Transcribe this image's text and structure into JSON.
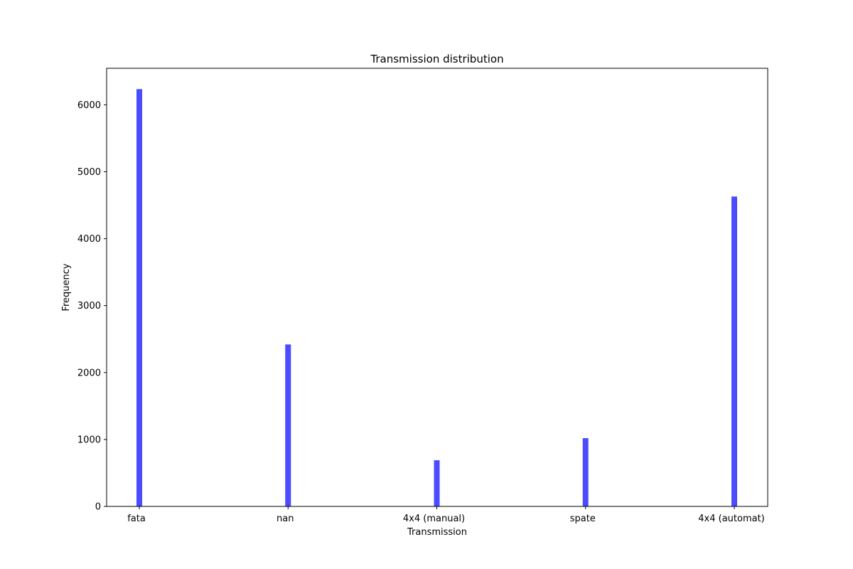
{
  "chart_data": {
    "type": "bar",
    "title": "Transmission distribution",
    "xlabel": "Transmission",
    "ylabel": "Frequency",
    "categories": [
      "fata",
      "nan",
      "4x4 (manual)",
      "spate",
      "4x4 (automat)"
    ],
    "values": [
      6235,
      2420,
      690,
      1020,
      4630
    ],
    "ylim": [
      0,
      6546
    ],
    "yticks": [
      0,
      1000,
      2000,
      3000,
      4000,
      5000,
      6000
    ],
    "bar_color": "#4b4bff",
    "grid": false,
    "legend": "none"
  }
}
